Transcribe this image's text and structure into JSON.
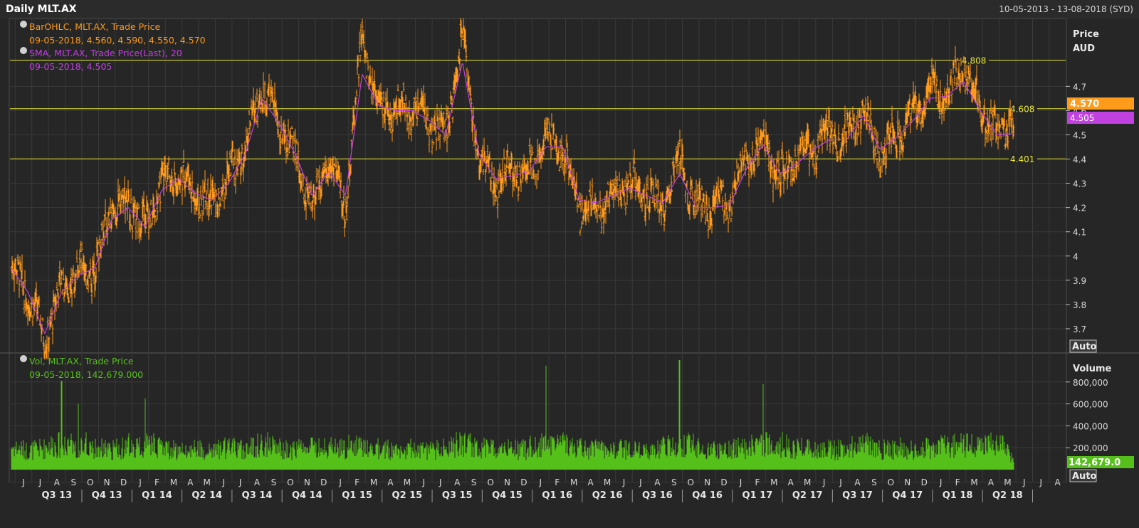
{
  "header": {
    "title": "Daily MLT.AX",
    "date_range": "10-05-2013 - 13-08-2018 (SYD)"
  },
  "colors": {
    "background": "#262626",
    "grid": "#3a3a3a",
    "price_bars": "#ff9a1a",
    "sma": "#c040e0",
    "volume": "#55c01a",
    "reference_lines": "#e8e830"
  },
  "legends": {
    "price": {
      "line1": "BarOHLC, MLT.AX, Trade Price",
      "line2": "09-05-2018, 4.560, 4.590, 4.550, 4.570",
      "line3": "SMA, MLT.AX, Trade Price(Last),  20",
      "line4": "09-05-2018, 4.505"
    },
    "volume": {
      "line1": "Vol, MLT.AX, Trade Price",
      "line2": "09-05-2018, 142,679.000"
    }
  },
  "labels": {
    "price_axis_title": "Price",
    "price_axis_unit": "AUD",
    "volume_axis_title": "Volume",
    "auto_button": "Auto",
    "last_price_tag": "4.570",
    "last_sma_tag": "4.505",
    "last_volume_tag": "142,679.0"
  },
  "chart_data": [
    {
      "type": "bar",
      "subtype": "ohlc",
      "title": "BarOHLC, MLT.AX, Trade Price",
      "ylabel": "Price AUD",
      "ylim": [
        3.6,
        4.98
      ],
      "yticks": [
        "4.7",
        "4.6",
        "4.5",
        "4.4",
        "4.3",
        "4.2",
        "4.1",
        "4",
        "3.9",
        "3.8",
        "3.7"
      ],
      "grid": true,
      "reference_lines": [
        {
          "label": "4.808",
          "value": 4.808
        },
        {
          "label": "4.608",
          "value": 4.608
        },
        {
          "label": "4.401",
          "value": 4.401
        }
      ],
      "last_bar": {
        "date": "09-05-2018",
        "open": 4.56,
        "high": 4.59,
        "low": 4.55,
        "close": 4.57
      },
      "series": [
        {
          "name": "BarOHLC, MLT.AX, Trade Price",
          "x": [
            "2013-05",
            "2013-06",
            "2013-07",
            "2013-08",
            "2013-09",
            "2013-10",
            "2013-11",
            "2013-12",
            "2014-01",
            "2014-02",
            "2014-03",
            "2014-04",
            "2014-05",
            "2014-06",
            "2014-07",
            "2014-08",
            "2014-09",
            "2014-10",
            "2014-11",
            "2014-12",
            "2015-01",
            "2015-02",
            "2015-03",
            "2015-04",
            "2015-05",
            "2015-06",
            "2015-07",
            "2015-08",
            "2015-09",
            "2015-10",
            "2015-11",
            "2015-12",
            "2016-01",
            "2016-02",
            "2016-03",
            "2016-04",
            "2016-05",
            "2016-06",
            "2016-07",
            "2016-08",
            "2016-09",
            "2016-10",
            "2016-11",
            "2016-12",
            "2017-01",
            "2017-02",
            "2017-03",
            "2017-04",
            "2017-05",
            "2017-06",
            "2017-07",
            "2017-08",
            "2017-09",
            "2017-10",
            "2017-11",
            "2017-12",
            "2018-01",
            "2018-02",
            "2018-03",
            "2018-04",
            "2018-05"
          ],
          "values": [
            3.95,
            3.85,
            3.66,
            3.88,
            3.93,
            3.95,
            4.2,
            4.22,
            4.12,
            4.3,
            4.35,
            4.25,
            4.22,
            4.32,
            4.45,
            4.7,
            4.55,
            4.4,
            4.2,
            4.4,
            4.2,
            4.9,
            4.6,
            4.6,
            4.62,
            4.55,
            4.5,
            4.9,
            4.4,
            4.3,
            4.35,
            4.35,
            4.48,
            4.45,
            4.2,
            4.2,
            4.25,
            4.3,
            4.25,
            4.2,
            4.4,
            4.2,
            4.2,
            4.22,
            4.4,
            4.48,
            4.32,
            4.4,
            4.45,
            4.5,
            4.48,
            4.62,
            4.42,
            4.5,
            4.58,
            4.68,
            4.65,
            4.8,
            4.6,
            4.5,
            4.57
          ]
        },
        {
          "name": "SMA, MLT.AX, Trade Price(Last),  20",
          "x": [
            "2013-05",
            "2013-06",
            "2013-07",
            "2013-08",
            "2013-09",
            "2013-10",
            "2013-11",
            "2013-12",
            "2014-01",
            "2014-02",
            "2014-03",
            "2014-04",
            "2014-05",
            "2014-06",
            "2014-07",
            "2014-08",
            "2014-09",
            "2014-10",
            "2014-11",
            "2014-12",
            "2015-01",
            "2015-02",
            "2015-03",
            "2015-04",
            "2015-05",
            "2015-06",
            "2015-07",
            "2015-08",
            "2015-09",
            "2015-10",
            "2015-11",
            "2015-12",
            "2016-01",
            "2016-02",
            "2016-03",
            "2016-04",
            "2016-05",
            "2016-06",
            "2016-07",
            "2016-08",
            "2016-09",
            "2016-10",
            "2016-11",
            "2016-12",
            "2017-01",
            "2017-02",
            "2017-03",
            "2017-04",
            "2017-05",
            "2017-06",
            "2017-07",
            "2017-08",
            "2017-09",
            "2017-10",
            "2017-11",
            "2017-12",
            "2018-01",
            "2018-02",
            "2018-03",
            "2018-04",
            "2018-05"
          ],
          "values": [
            3.95,
            3.85,
            3.68,
            3.85,
            3.92,
            3.95,
            4.15,
            4.2,
            4.12,
            4.27,
            4.32,
            4.26,
            4.23,
            4.3,
            4.42,
            4.65,
            4.55,
            4.42,
            4.25,
            4.35,
            4.25,
            4.75,
            4.62,
            4.6,
            4.6,
            4.56,
            4.5,
            4.8,
            4.42,
            4.32,
            4.33,
            4.35,
            4.45,
            4.45,
            4.23,
            4.22,
            4.25,
            4.28,
            4.25,
            4.22,
            4.34,
            4.2,
            4.2,
            4.21,
            4.36,
            4.46,
            4.34,
            4.38,
            4.44,
            4.48,
            4.48,
            4.58,
            4.44,
            4.49,
            4.56,
            4.65,
            4.66,
            4.72,
            4.6,
            4.5,
            4.505
          ]
        }
      ]
    },
    {
      "type": "bar",
      "title": "Vol, MLT.AX, Trade Price",
      "ylabel": "Volume",
      "ylim": [
        0,
        1000000
      ],
      "yticks": [
        "800,000",
        "600,000",
        "400,000",
        "200,000"
      ],
      "grid": true,
      "last_bar": {
        "date": "09-05-2018",
        "value": 142679
      },
      "series": [
        {
          "name": "Vol, MLT.AX, Trade Price",
          "x": [
            "2013-05",
            "2013-06",
            "2013-07",
            "2013-08",
            "2013-09",
            "2013-10",
            "2013-11",
            "2013-12",
            "2014-01",
            "2014-02",
            "2014-03",
            "2014-04",
            "2014-05",
            "2014-06",
            "2014-07",
            "2014-08",
            "2014-09",
            "2014-10",
            "2014-11",
            "2014-12",
            "2015-01",
            "2015-02",
            "2015-03",
            "2015-04",
            "2015-05",
            "2015-06",
            "2015-07",
            "2015-08",
            "2015-09",
            "2015-10",
            "2015-11",
            "2015-12",
            "2016-01",
            "2016-02",
            "2016-03",
            "2016-04",
            "2016-05",
            "2016-06",
            "2016-07",
            "2016-08",
            "2016-09",
            "2016-10",
            "2016-11",
            "2016-12",
            "2017-01",
            "2017-02",
            "2017-03",
            "2017-04",
            "2017-05",
            "2017-06",
            "2017-07",
            "2017-08",
            "2017-09",
            "2017-10",
            "2017-11",
            "2017-12",
            "2018-01",
            "2018-02",
            "2018-03",
            "2018-04",
            "2018-05"
          ],
          "values": [
            280000,
            230000,
            260000,
            810000,
            600000,
            260000,
            240000,
            280000,
            650000,
            260000,
            230000,
            250000,
            240000,
            260000,
            250000,
            380000,
            250000,
            240000,
            260000,
            280000,
            260000,
            380000,
            250000,
            240000,
            250000,
            240000,
            250000,
            360000,
            260000,
            250000,
            240000,
            250000,
            950000,
            380000,
            260000,
            250000,
            240000,
            250000,
            240000,
            260000,
            1000000,
            250000,
            240000,
            250000,
            260000,
            780000,
            330000,
            260000,
            250000,
            240000,
            260000,
            330000,
            250000,
            260000,
            250000,
            260000,
            280000,
            350000,
            270000,
            420000,
            142679
          ]
        }
      ]
    }
  ],
  "x_axis": {
    "months": [
      "J",
      "J",
      "A",
      "S",
      "O",
      "N",
      "D",
      "J",
      "F",
      "M",
      "A",
      "M",
      "J",
      "J",
      "A",
      "S",
      "O",
      "N",
      "D",
      "J",
      "F",
      "M",
      "A",
      "M",
      "J",
      "J",
      "A",
      "S",
      "O",
      "N",
      "D",
      "J",
      "F",
      "M",
      "A",
      "M",
      "J",
      "J",
      "A",
      "S",
      "O",
      "N",
      "D",
      "J",
      "F",
      "M",
      "A",
      "M",
      "J",
      "J",
      "A",
      "S",
      "O",
      "N",
      "D",
      "J",
      "F",
      "M",
      "A",
      "M",
      "J",
      "J",
      "A"
    ],
    "quarters": [
      "Q3 13",
      "Q4 13",
      "Q1 14",
      "Q2 14",
      "Q3 14",
      "Q4 14",
      "Q1 15",
      "Q2 15",
      "Q3 15",
      "Q4 15",
      "Q1 16",
      "Q2 16",
      "Q3 16",
      "Q4 16",
      "Q1 17",
      "Q2 17",
      "Q3 17",
      "Q4 17",
      "Q1 18",
      "Q2 18"
    ]
  }
}
